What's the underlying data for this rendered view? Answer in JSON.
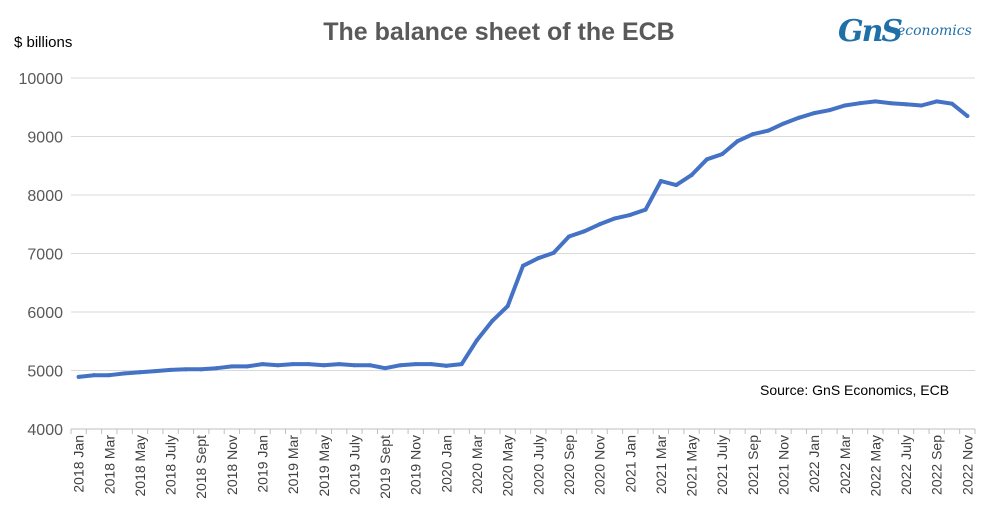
{
  "chart_data": {
    "type": "line",
    "title": "The balance sheet of the ECB",
    "ylabel": "$ billions",
    "xlabel": "",
    "ylim": [
      4000,
      10000
    ],
    "yticks": [
      4000,
      5000,
      6000,
      7000,
      8000,
      9000,
      10000
    ],
    "grid": true,
    "legend": "none",
    "source_note": "Source: GnS Economics, ECB",
    "x": [
      "2018 Jan",
      "2018 Feb",
      "2018 Mar",
      "2018 Apr",
      "2018 May",
      "2018 June",
      "2018 July",
      "2018 Aug",
      "2018 Sept",
      "2018 Oct",
      "2018 Nov",
      "2018 Dec",
      "2019 Jan",
      "2019 Feb",
      "2019 Mar",
      "2019 Apr",
      "2019 May",
      "2019 June",
      "2019 July",
      "2019 Aug",
      "2019 Sept",
      "2019 Oct",
      "2019 Nov",
      "2019 Dec",
      "2020 Jan",
      "2020 Feb",
      "2020 Mar",
      "2020 Apr",
      "2020 May",
      "2020 June",
      "2020 July",
      "2020 Aug",
      "2020 Sep",
      "2020 Oct",
      "2020 Nov",
      "2020 Dec",
      "2021 Jan",
      "2021 Feb",
      "2021 Mar",
      "2021 Apr",
      "2021 May",
      "2021 June",
      "2021 July",
      "2021 Aug",
      "2021 Sep",
      "2021 Oct",
      "2021 Nov",
      "2021 Dec",
      "2022 Jan",
      "2022 Feb",
      "2022 Mar",
      "2022 Apr",
      "2022 May",
      "2022 June",
      "2022 July",
      "2022 Aug",
      "2022 Sep",
      "2022 Oct",
      "2022 Nov"
    ],
    "tick_labels": [
      "2018 Jan",
      "2018 Mar",
      "2018 May",
      "2018 July",
      "2018 Sept",
      "2018 Nov",
      "2019 Jan",
      "2019 Mar",
      "2019 May",
      "2019 July",
      "2019 Sept",
      "2019 Nov",
      "2020 Jan",
      "2020 Mar",
      "2020 May",
      "2020 July",
      "2020 Sep",
      "2020 Nov",
      "2021 Jan",
      "2021 Mar",
      "2021 May",
      "2021 July",
      "2021 Sep",
      "2021 Nov",
      "2022 Jan",
      "2022 Mar",
      "2022 May",
      "2022 July",
      "2022 Sep",
      "2022 Nov"
    ],
    "series": [
      {
        "color": "#4472C4",
        "values": [
          4890,
          4920,
          4920,
          4950,
          4970,
          4990,
          5010,
          5020,
          5020,
          5040,
          5070,
          5070,
          5110,
          5090,
          5110,
          5110,
          5090,
          5110,
          5090,
          5090,
          5040,
          5090,
          5110,
          5110,
          5080,
          5110,
          5520,
          5850,
          6100,
          6790,
          6920,
          7010,
          7290,
          7380,
          7500,
          7600,
          7660,
          7750,
          8240,
          8170,
          8340,
          8610,
          8700,
          8920,
          9040,
          9100,
          9220,
          9320,
          9400,
          9450,
          9530,
          9570,
          9600,
          9570,
          9550,
          9530,
          9600,
          9560,
          9350
        ]
      }
    ]
  },
  "logo": {
    "brand": "GnS",
    "suffix": "economics",
    "color": "#1F6FA8"
  }
}
